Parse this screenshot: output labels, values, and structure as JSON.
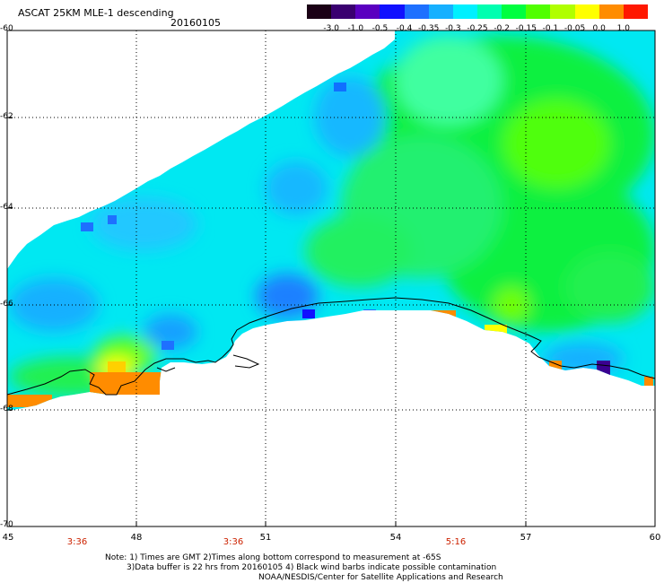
{
  "title": "ASCAT 25KM MLE-1 descending",
  "date": "20160105",
  "colorbar": {
    "labels": [
      "-3.0",
      "-1.0",
      "-0.5",
      "-0.4",
      "-0.35",
      "-0.3",
      "-0.25",
      "-0.2",
      "-0.15",
      "-0.1",
      "-0.05",
      "0.0",
      "1.0"
    ],
    "colors": [
      "#1a0015",
      "#3a0070",
      "#5a00c0",
      "#1010ff",
      "#1e70ff",
      "#16b0ff",
      "#00f0ff",
      "#00ffb0",
      "#00ff40",
      "#50ff00",
      "#b0ff00",
      "#ffff00",
      "#ff8c00",
      "#ff1800"
    ]
  },
  "y_axis": {
    "labels": [
      "-60",
      "-62",
      "-64",
      "-66",
      "-68",
      "-70"
    ]
  },
  "x_axis": {
    "labels": [
      "45",
      "48",
      "51",
      "54",
      "57",
      "60"
    ]
  },
  "times": [
    "3:36",
    "3:36",
    "5:16"
  ],
  "notes": {
    "line1": "Note: 1) Times are GMT 2)Times along bottom correspond to measurement at -65S",
    "line2": "3)Data buffer is 22 hrs from 20160105 4) Black wind barbs indicate possible contamination",
    "line3": "NOAA/NESDIS/Center for Satellite Applications and Research"
  }
}
